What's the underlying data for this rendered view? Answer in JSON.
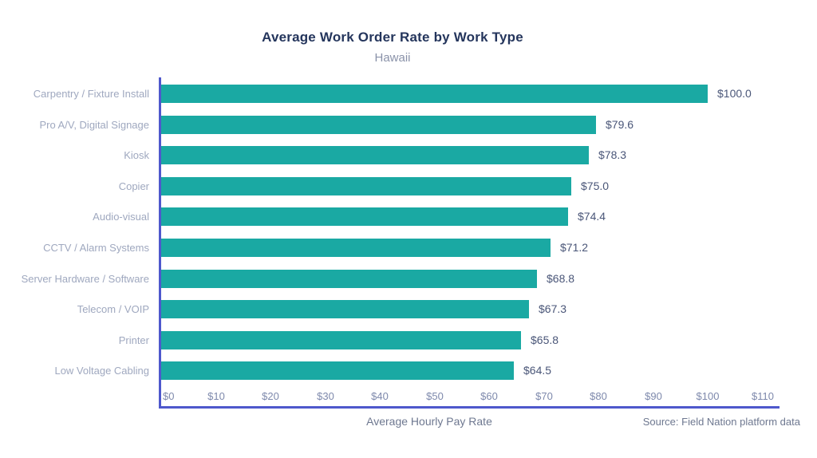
{
  "chart_data": {
    "type": "bar",
    "orientation": "horizontal",
    "title": "Average Work Order Rate by Work Type",
    "subtitle": "Hawaii",
    "xlabel": "Average Hourly Pay Rate",
    "source": "Source: Field Nation platform data",
    "categories": [
      "Carpentry / Fixture Install",
      "Pro A/V, Digital Signage",
      "Kiosk",
      "Copier",
      "Audio-visual",
      "CCTV / Alarm Systems",
      "Server Hardware / Software",
      "Telecom / VOIP",
      "Printer",
      "Low Voltage Cabling"
    ],
    "values": [
      100.0,
      79.6,
      78.3,
      75.0,
      74.4,
      71.2,
      68.8,
      67.3,
      65.8,
      64.5
    ],
    "value_labels": [
      "$100.0",
      "$79.6",
      "$78.3",
      "$75.0",
      "$74.4",
      "$71.2",
      "$68.8",
      "$67.3",
      "$65.8",
      "$64.5"
    ],
    "x_tick_values": [
      0,
      10,
      20,
      30,
      40,
      50,
      60,
      70,
      80,
      90,
      100,
      110
    ],
    "x_tick_labels": [
      "$0",
      "$10",
      "$20",
      "$30",
      "$40",
      "$50",
      "$60",
      "$70",
      "$80",
      "$90",
      "$100",
      "$110"
    ],
    "xlim": [
      0,
      113
    ],
    "grid": false,
    "legend": null,
    "colors": {
      "bar": "#1aa9a3",
      "axis": "#4e58cc",
      "title": "#24355c",
      "subtitle": "#8a92a9",
      "category_label": "#9fa8bf",
      "value_label": "#4a5678",
      "tick_label": "#7e89ac",
      "footer_text": "#6e7890",
      "background": "#ffffff"
    }
  }
}
